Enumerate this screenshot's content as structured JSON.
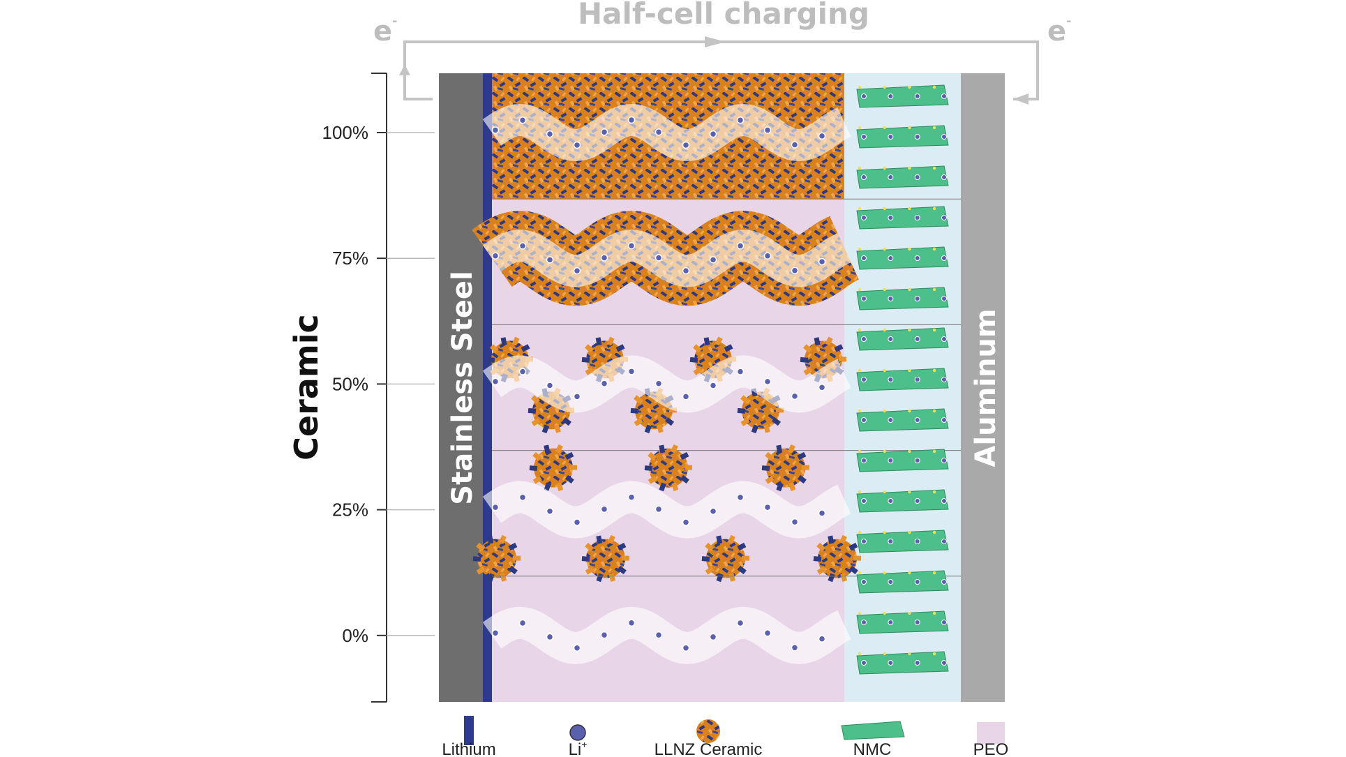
{
  "title": "Half-cell charging",
  "electron": {
    "symbol": "e",
    "charge": "-"
  },
  "axis": {
    "title": "Ceramic",
    "ticks": [
      "100%",
      "75%",
      "50%",
      "25%",
      "0%"
    ]
  },
  "layers": {
    "left_plate": "Stainless Steel",
    "right_plate": "Aluminum"
  },
  "rows": [
    {
      "ceramic_fraction": 1.0
    },
    {
      "ceramic_fraction": 0.75
    },
    {
      "ceramic_fraction": 0.5
    },
    {
      "ceramic_fraction": 0.25
    },
    {
      "ceramic_fraction": 0.0
    }
  ],
  "legend": [
    {
      "key": "lithium",
      "label": "Lithium"
    },
    {
      "key": "li-ion",
      "label": "Li",
      "sup": "+"
    },
    {
      "key": "ceramic",
      "label": "LLNZ Ceramic"
    },
    {
      "key": "nmc",
      "label": "NMC"
    },
    {
      "key": "peo",
      "label": "PEO"
    }
  ],
  "colors": {
    "stainless_steel": "#6e6e6e",
    "lithium": "#2e3a8c",
    "peo": "#e8d6e8",
    "ceramic_orange": "#e8922e",
    "ceramic_blue": "#2e3a80",
    "nmc": "#4dbf8a",
    "cathode_bg": "#dcecf5",
    "aluminum": "#a9a9a9",
    "li_ion": "#5a5fae",
    "circuit": "#c4c4c4"
  }
}
